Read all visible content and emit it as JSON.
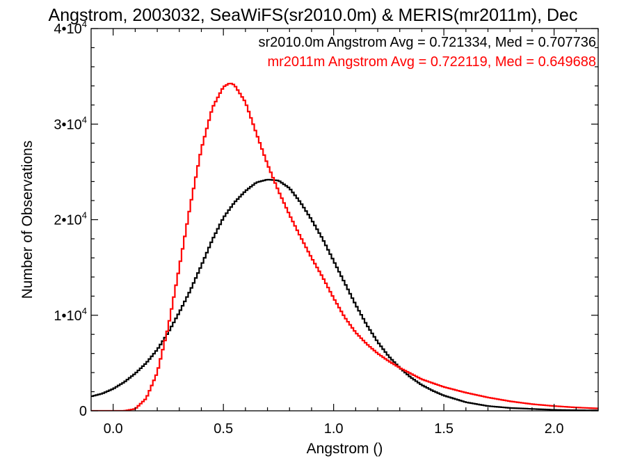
{
  "chart_data": {
    "type": "line",
    "title": "Angstrom, 2003032, SeaWiFS(sr2010.0m) & MERIS(mr2011m), Dec",
    "xlabel": "Angstrom ()",
    "ylabel": "Number of Observations",
    "xlim": [
      -0.1,
      2.2
    ],
    "ylim": [
      0,
      40000
    ],
    "x_ticks": [
      {
        "value": 0.0,
        "label": "0.0"
      },
      {
        "value": 0.5,
        "label": "0.5"
      },
      {
        "value": 1.0,
        "label": "1.0"
      },
      {
        "value": 1.5,
        "label": "1.5"
      },
      {
        "value": 2.0,
        "label": "2.0"
      }
    ],
    "y_ticks": [
      {
        "value": 0,
        "mantissa": "0",
        "exponent": ""
      },
      {
        "value": 10000,
        "mantissa": "1•10",
        "exponent": "4"
      },
      {
        "value": 20000,
        "mantissa": "2•10",
        "exponent": "4"
      },
      {
        "value": 30000,
        "mantissa": "3•10",
        "exponent": "4"
      },
      {
        "value": 40000,
        "mantissa": "4•10",
        "exponent": "4"
      }
    ],
    "grid": false,
    "step": true,
    "annotations": [
      {
        "text": "sr2010.0m Angstrom Avg = 0.721334, Med = 0.707736",
        "color": "#000000"
      },
      {
        "text": "mr2011m Angstrom Avg = 0.722119, Med = 0.649688",
        "color": "#ff0000"
      }
    ],
    "series": [
      {
        "color": "#000000",
        "x": [
          -0.1,
          -0.05,
          0.0,
          0.05,
          0.1,
          0.15,
          0.2,
          0.25,
          0.3,
          0.35,
          0.4,
          0.45,
          0.5,
          0.55,
          0.6,
          0.65,
          0.7,
          0.75,
          0.8,
          0.85,
          0.9,
          0.95,
          1.0,
          1.05,
          1.1,
          1.15,
          1.2,
          1.25,
          1.3,
          1.35,
          1.4,
          1.45,
          1.5,
          1.6,
          1.7,
          1.8,
          1.9,
          2.0,
          2.1,
          2.2
        ],
        "y": [
          1500,
          1800,
          2300,
          3000,
          3900,
          5000,
          6400,
          8200,
          10300,
          12600,
          15200,
          17900,
          20200,
          21800,
          23000,
          23900,
          24200,
          24100,
          23300,
          21800,
          20000,
          18000,
          15700,
          13400,
          11100,
          9000,
          7200,
          5700,
          4500,
          3500,
          2700,
          2100,
          1600,
          900,
          500,
          300,
          200,
          100,
          60,
          40
        ]
      },
      {
        "color": "#ff0000",
        "x": [
          -0.1,
          0.0,
          0.05,
          0.1,
          0.15,
          0.2,
          0.25,
          0.3,
          0.35,
          0.4,
          0.45,
          0.5,
          0.53,
          0.55,
          0.6,
          0.65,
          0.7,
          0.75,
          0.8,
          0.85,
          0.9,
          0.95,
          1.0,
          1.05,
          1.1,
          1.15,
          1.2,
          1.25,
          1.3,
          1.35,
          1.4,
          1.45,
          1.5,
          1.6,
          1.7,
          1.8,
          1.9,
          2.0,
          2.1,
          2.2
        ],
        "y": [
          0,
          0,
          0,
          200,
          1300,
          4000,
          8800,
          15000,
          21500,
          27400,
          31700,
          33900,
          34300,
          34100,
          32300,
          29000,
          25800,
          23000,
          20500,
          18200,
          16000,
          14000,
          11800,
          9800,
          8200,
          7000,
          6000,
          5200,
          4500,
          3900,
          3300,
          2900,
          2500,
          1900,
          1400,
          1000,
          700,
          500,
          350,
          250
        ]
      }
    ]
  }
}
